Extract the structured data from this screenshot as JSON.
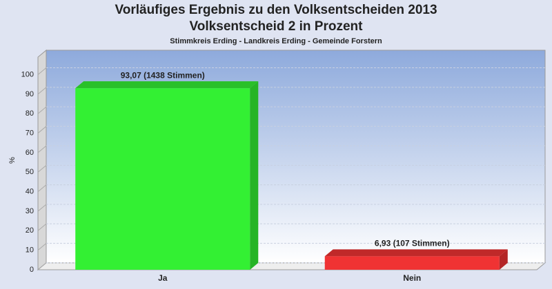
{
  "chart_data": {
    "type": "bar3d",
    "title": [
      "Vorläufiges Ergebnis zu den Volksentscheiden 2013",
      "Volksentscheid 2 in Prozent"
    ],
    "subtitle": "Stimmkreis Erding - Landkreis Erding - Gemeinde Forstern",
    "ylabel": "%",
    "categories": [
      "Ja",
      "Nein"
    ],
    "values": [
      93.07,
      6.93
    ],
    "value_labels": [
      "93,07 (1438 Stimmen)",
      "6,93 (107 Stimmen)"
    ],
    "colors": [
      "#33f033",
      "#f03333"
    ],
    "ylim": [
      0,
      109
    ],
    "yticks": [
      0,
      10,
      20,
      30,
      40,
      50,
      60,
      70,
      80,
      90,
      100
    ],
    "grid": true
  }
}
